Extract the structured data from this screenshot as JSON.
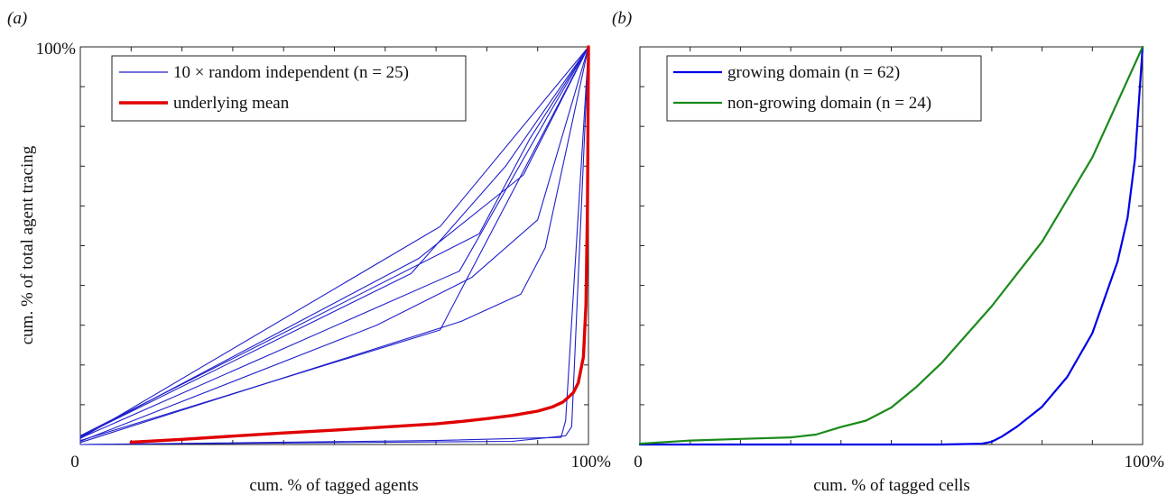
{
  "chart_data": [
    {
      "type": "line",
      "panel_label": "(a)",
      "xlabel": "cum. % of tagged agents",
      "ylabel": "cum. % of total agent tracing",
      "x_tick_labels": {
        "min": "0",
        "max": "100%"
      },
      "y_tick_labels": {
        "max": "100%"
      },
      "xlim": [
        0,
        100
      ],
      "ylim": [
        0,
        100
      ],
      "grid": false,
      "legend": {
        "placement": "top-left",
        "entries": [
          {
            "label": "10 × random independent (n = 25)",
            "color": "#1f1fcc",
            "style": "thin"
          },
          {
            "label": "underlying mean",
            "color": "#e00000",
            "style": "thick"
          }
        ]
      },
      "series": [
        {
          "group": "10 × random independent (n = 25)",
          "color": "#1f1fcc",
          "x": [
            0,
            70.8,
            100
          ],
          "y": [
            1.5,
            54.8,
            100
          ]
        },
        {
          "group": "10 × random independent (n = 25)",
          "color": "#1f1fcc",
          "x": [
            0,
            66.6,
            87.2,
            100
          ],
          "y": [
            1.8,
            46.8,
            67.8,
            100
          ]
        },
        {
          "group": "10 × random independent (n = 25)",
          "color": "#1f1fcc",
          "x": [
            0,
            65.1,
            83.7,
            100
          ],
          "y": [
            2.0,
            43.0,
            70.0,
            100
          ]
        },
        {
          "group": "10 × random independent (n = 25)",
          "color": "#1f1fcc",
          "x": [
            0,
            78.5,
            88.5,
            100
          ],
          "y": [
            2.2,
            53.0,
            77.0,
            100
          ]
        },
        {
          "group": "10 × random independent (n = 25)",
          "color": "#1f1fcc",
          "x": [
            0,
            74.6,
            92.5,
            100
          ],
          "y": [
            1.6,
            43.6,
            83.7,
            100
          ]
        },
        {
          "group": "10 × random independent (n = 25)",
          "color": "#1f1fcc",
          "x": [
            0,
            70.8,
            100
          ],
          "y": [
            1.0,
            28.8,
            100
          ]
        },
        {
          "group": "10 × random independent (n = 25)",
          "color": "#1f1fcc",
          "x": [
            0,
            58.3,
            77.0,
            90.0,
            100
          ],
          "y": [
            0.8,
            30.0,
            42.0,
            56.5,
            100
          ]
        },
        {
          "group": "10 × random independent (n = 25)",
          "color": "#1f1fcc",
          "x": [
            0,
            75.0,
            86.7,
            91.5,
            100
          ],
          "y": [
            0.5,
            31.0,
            37.8,
            49.5,
            100
          ]
        },
        {
          "group": "10 × random independent (n = 25)",
          "color": "#1f1fcc",
          "x": [
            0,
            70.0,
            94.6,
            95.5,
            100
          ],
          "y": [
            0,
            1.0,
            1.8,
            6.0,
            100
          ]
        },
        {
          "group": "10 × random independent (n = 25)",
          "color": "#1f1fcc",
          "x": [
            0,
            85.0,
            95.5,
            96.7,
            100
          ],
          "y": [
            0,
            0.8,
            2.2,
            4.5,
            100
          ]
        },
        {
          "group": "underlying mean",
          "color": "#e00000",
          "x": [
            10,
            20,
            30,
            40,
            50,
            60,
            70,
            75,
            80,
            85,
            90,
            93,
            95,
            97,
            98,
            99,
            99.5,
            99.8,
            100
          ],
          "y": [
            0.6,
            1.3,
            2.1,
            2.9,
            3.6,
            4.4,
            5.2,
            5.8,
            6.5,
            7.3,
            8.4,
            9.5,
            10.7,
            13.0,
            15.5,
            22,
            35,
            60,
            100
          ]
        }
      ]
    },
    {
      "type": "line",
      "panel_label": "(b)",
      "xlabel": "cum. % of tagged cells",
      "ylabel": "",
      "x_tick_labels": {
        "min": "0",
        "max": "100%"
      },
      "xlim": [
        0,
        100
      ],
      "ylim": [
        0,
        100
      ],
      "grid": false,
      "legend": {
        "placement": "top-left",
        "entries": [
          {
            "label": "growing domain (n = 62)",
            "color": "#0000e6"
          },
          {
            "label": "non-growing domain (n = 24)",
            "color": "#1a8a1a"
          }
        ]
      },
      "series": [
        {
          "name": "growing domain (n = 62)",
          "color": "#0000e6",
          "x": [
            0,
            40,
            60,
            68,
            70,
            72,
            75,
            80,
            85,
            90,
            95,
            97,
            98.5,
            100
          ],
          "y": [
            0,
            0,
            0,
            0.2,
            0.7,
            2.0,
            4.5,
            9.5,
            17.0,
            28.0,
            46.0,
            57.0,
            72.0,
            100
          ]
        },
        {
          "name": "non-growing domain (n = 24)",
          "color": "#1a8a1a",
          "x": [
            0,
            10,
            20,
            30,
            35,
            40,
            45,
            50,
            55,
            60,
            70,
            80,
            90,
            100
          ],
          "y": [
            0.2,
            1.0,
            1.4,
            1.8,
            2.5,
            4.4,
            6.0,
            9.3,
            14.5,
            20.5,
            34.8,
            51.0,
            72.2,
            100
          ]
        }
      ]
    }
  ]
}
